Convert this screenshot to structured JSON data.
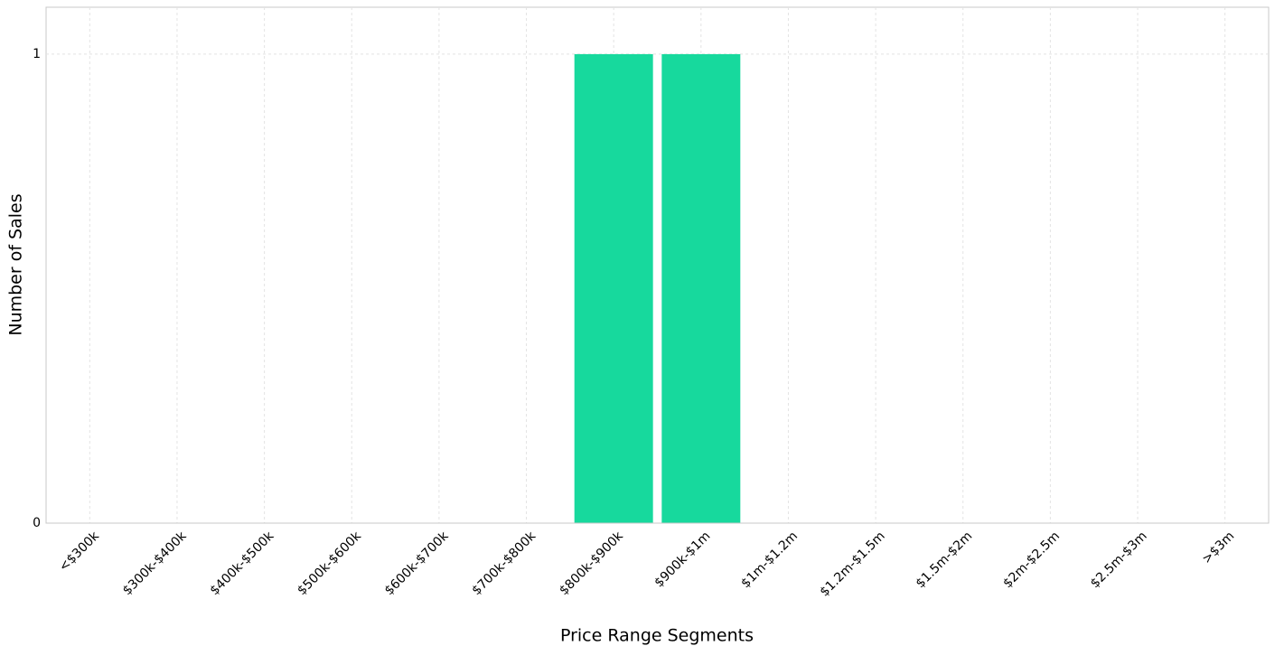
{
  "chart_data": {
    "type": "bar",
    "x_label": "Price Range Segments",
    "y_label": "Number of Sales",
    "categories": [
      "<$300k",
      "$300k-$400k",
      "$400k-$500k",
      "$500k-$600k",
      "$600k-$700k",
      "$700k-$800k",
      "$800k-$900k",
      "$900k-$1m",
      "$1m-$1.2m",
      "$1.2m-$1.5m",
      "$1.5m-$2m",
      "$2m-$2.5m",
      "$2.5m-$3m",
      ">$3m"
    ],
    "values": [
      0,
      0,
      0,
      0,
      0,
      0,
      1,
      1,
      0,
      0,
      0,
      0,
      0,
      0
    ],
    "color": "#17d99d",
    "ylim": [
      0,
      1.1
    ],
    "yticks": [
      0,
      1
    ],
    "grid": true
  }
}
